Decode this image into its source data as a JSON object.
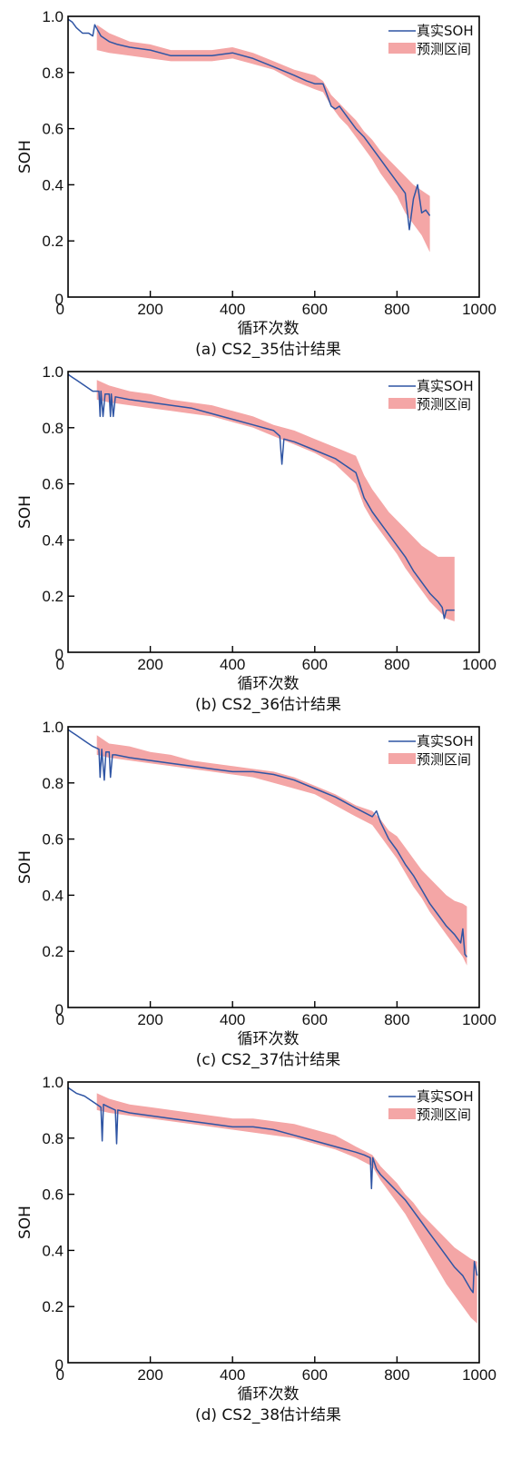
{
  "legend": {
    "actual": "真实SOH",
    "band": "预测区间"
  },
  "colors": {
    "actual": "#2f55a4",
    "band": "#f4a6a6",
    "axis": "#000000"
  },
  "chart_data": [
    {
      "type": "line",
      "caption": "(a) CS2_35估计结果",
      "xlabel": "循环次数",
      "ylabel": "SOH",
      "xlim": [
        0,
        1000
      ],
      "ylim": [
        0,
        1.0
      ],
      "xticks": [
        "0",
        "200",
        "400",
        "600",
        "800",
        "1000"
      ],
      "yticks": [
        "0",
        "0.2",
        "0.4",
        "0.6",
        "0.8",
        "1.0"
      ],
      "grid": false,
      "legend_position": "top-right",
      "series": [
        {
          "name": "真实SOH",
          "x": [
            0,
            10,
            20,
            35,
            50,
            60,
            65,
            80,
            100,
            120,
            150,
            200,
            250,
            300,
            350,
            400,
            450,
            500,
            550,
            580,
            600,
            620,
            630,
            640,
            650,
            660,
            680,
            700,
            720,
            740,
            760,
            780,
            800,
            820,
            830,
            840,
            850,
            860,
            870,
            880
          ],
          "y": [
            0.99,
            0.98,
            0.96,
            0.94,
            0.94,
            0.93,
            0.97,
            0.93,
            0.91,
            0.9,
            0.89,
            0.88,
            0.86,
            0.86,
            0.86,
            0.87,
            0.85,
            0.82,
            0.79,
            0.77,
            0.76,
            0.76,
            0.72,
            0.68,
            0.67,
            0.68,
            0.64,
            0.6,
            0.57,
            0.53,
            0.49,
            0.45,
            0.41,
            0.37,
            0.24,
            0.35,
            0.4,
            0.3,
            0.31,
            0.29
          ]
        },
        {
          "name": "预测区间",
          "x": [
            70,
            100,
            150,
            200,
            250,
            300,
            350,
            400,
            450,
            500,
            550,
            600,
            620,
            640,
            660,
            680,
            700,
            720,
            740,
            760,
            780,
            800,
            820,
            840,
            860,
            880
          ],
          "lower": [
            0.88,
            0.87,
            0.86,
            0.85,
            0.84,
            0.84,
            0.84,
            0.85,
            0.83,
            0.81,
            0.77,
            0.74,
            0.73,
            0.68,
            0.64,
            0.61,
            0.57,
            0.53,
            0.49,
            0.44,
            0.4,
            0.36,
            0.3,
            0.26,
            0.22,
            0.16
          ],
          "upper": [
            0.97,
            0.94,
            0.91,
            0.9,
            0.88,
            0.88,
            0.88,
            0.89,
            0.87,
            0.84,
            0.81,
            0.79,
            0.77,
            0.72,
            0.69,
            0.66,
            0.63,
            0.59,
            0.56,
            0.52,
            0.49,
            0.46,
            0.43,
            0.4,
            0.38,
            0.36
          ]
        }
      ]
    },
    {
      "type": "line",
      "caption": "(b) CS2_36估计结果",
      "xlabel": "循环次数",
      "ylabel": "SOH",
      "xlim": [
        0,
        1000
      ],
      "ylim": [
        0,
        1.0
      ],
      "xticks": [
        "0",
        "200",
        "400",
        "600",
        "800",
        "1000"
      ],
      "yticks": [
        "0",
        "0.2",
        "0.4",
        "0.6",
        "0.8",
        "1.0"
      ],
      "grid": false,
      "legend_position": "top-right",
      "series": [
        {
          "name": "真实SOH",
          "x": [
            0,
            10,
            20,
            40,
            60,
            75,
            78,
            80,
            85,
            90,
            100,
            103,
            105,
            110,
            115,
            150,
            200,
            250,
            300,
            350,
            400,
            450,
            500,
            515,
            520,
            525,
            550,
            600,
            650,
            700,
            720,
            740,
            760,
            780,
            800,
            820,
            840,
            860,
            880,
            900,
            910,
            915,
            920,
            930,
            940
          ],
          "y": [
            0.99,
            0.98,
            0.97,
            0.95,
            0.93,
            0.93,
            0.84,
            0.93,
            0.84,
            0.92,
            0.92,
            0.84,
            0.92,
            0.84,
            0.91,
            0.9,
            0.89,
            0.88,
            0.87,
            0.85,
            0.83,
            0.81,
            0.79,
            0.77,
            0.67,
            0.76,
            0.75,
            0.72,
            0.69,
            0.64,
            0.55,
            0.5,
            0.46,
            0.42,
            0.38,
            0.34,
            0.29,
            0.25,
            0.21,
            0.18,
            0.16,
            0.12,
            0.15,
            0.15,
            0.15
          ]
        },
        {
          "name": "预测区间",
          "x": [
            70,
            100,
            150,
            200,
            250,
            300,
            350,
            400,
            450,
            500,
            550,
            600,
            650,
            700,
            720,
            740,
            760,
            780,
            800,
            820,
            840,
            860,
            880,
            900,
            920,
            940
          ],
          "lower": [
            0.9,
            0.89,
            0.88,
            0.87,
            0.86,
            0.85,
            0.84,
            0.82,
            0.8,
            0.77,
            0.74,
            0.71,
            0.67,
            0.6,
            0.52,
            0.47,
            0.43,
            0.39,
            0.35,
            0.3,
            0.26,
            0.22,
            0.18,
            0.15,
            0.12,
            0.11
          ],
          "upper": [
            0.97,
            0.95,
            0.93,
            0.92,
            0.9,
            0.89,
            0.88,
            0.86,
            0.84,
            0.81,
            0.79,
            0.76,
            0.73,
            0.7,
            0.63,
            0.58,
            0.54,
            0.5,
            0.47,
            0.44,
            0.41,
            0.38,
            0.36,
            0.34,
            0.34,
            0.34
          ]
        }
      ]
    },
    {
      "type": "line",
      "caption": "(c) CS2_37估计结果",
      "xlabel": "循环次数",
      "ylabel": "SOH",
      "xlim": [
        0,
        1000
      ],
      "ylim": [
        0,
        1.0
      ],
      "xticks": [
        "0",
        "200",
        "400",
        "600",
        "800",
        "1000"
      ],
      "yticks": [
        "0",
        "0.2",
        "0.4",
        "0.6",
        "0.8",
        "1.0"
      ],
      "grid": false,
      "legend_position": "top-right",
      "series": [
        {
          "name": "真实SOH",
          "x": [
            0,
            10,
            20,
            40,
            60,
            75,
            78,
            82,
            88,
            92,
            100,
            103,
            108,
            115,
            150,
            200,
            250,
            300,
            350,
            400,
            450,
            500,
            550,
            600,
            650,
            700,
            740,
            750,
            760,
            770,
            780,
            800,
            820,
            840,
            860,
            880,
            900,
            920,
            940,
            955,
            960,
            965,
            970
          ],
          "y": [
            0.99,
            0.98,
            0.97,
            0.95,
            0.93,
            0.92,
            0.82,
            0.92,
            0.81,
            0.91,
            0.91,
            0.82,
            0.9,
            0.9,
            0.89,
            0.88,
            0.87,
            0.86,
            0.85,
            0.84,
            0.84,
            0.83,
            0.81,
            0.78,
            0.75,
            0.71,
            0.68,
            0.7,
            0.66,
            0.63,
            0.6,
            0.56,
            0.51,
            0.47,
            0.42,
            0.37,
            0.33,
            0.29,
            0.26,
            0.23,
            0.28,
            0.19,
            0.18
          ]
        },
        {
          "name": "预测区间",
          "x": [
            70,
            100,
            150,
            200,
            250,
            300,
            350,
            400,
            450,
            500,
            550,
            600,
            650,
            700,
            740,
            760,
            780,
            800,
            820,
            840,
            860,
            880,
            900,
            920,
            940,
            960,
            970
          ],
          "lower": [
            0.9,
            0.89,
            0.88,
            0.87,
            0.86,
            0.85,
            0.84,
            0.83,
            0.82,
            0.8,
            0.78,
            0.76,
            0.72,
            0.68,
            0.65,
            0.61,
            0.57,
            0.53,
            0.48,
            0.43,
            0.39,
            0.34,
            0.3,
            0.26,
            0.22,
            0.18,
            0.15
          ],
          "upper": [
            0.97,
            0.94,
            0.93,
            0.91,
            0.9,
            0.88,
            0.87,
            0.86,
            0.85,
            0.84,
            0.82,
            0.79,
            0.76,
            0.72,
            0.7,
            0.67,
            0.63,
            0.61,
            0.57,
            0.53,
            0.49,
            0.46,
            0.43,
            0.4,
            0.38,
            0.37,
            0.36
          ]
        }
      ]
    },
    {
      "type": "line",
      "caption": "(d) CS2_38估计结果",
      "xlabel": "循环次数",
      "ylabel": "SOH",
      "xlim": [
        0,
        1000
      ],
      "ylim": [
        0,
        1.0
      ],
      "xticks": [
        "0",
        "200",
        "400",
        "600",
        "800",
        "1000"
      ],
      "yticks": [
        "0",
        "0.2",
        "0.4",
        "0.6",
        "0.8",
        "1.0"
      ],
      "grid": false,
      "legend_position": "top-right",
      "series": [
        {
          "name": "真实SOH",
          "x": [
            0,
            10,
            20,
            40,
            60,
            80,
            83,
            86,
            100,
            115,
            118,
            121,
            150,
            200,
            250,
            300,
            350,
            400,
            450,
            500,
            550,
            600,
            650,
            700,
            720,
            735,
            738,
            741,
            750,
            760,
            780,
            800,
            820,
            840,
            860,
            880,
            900,
            920,
            940,
            960,
            980,
            985,
            988,
            995
          ],
          "y": [
            0.98,
            0.97,
            0.96,
            0.95,
            0.93,
            0.91,
            0.79,
            0.92,
            0.91,
            0.9,
            0.78,
            0.9,
            0.89,
            0.88,
            0.87,
            0.86,
            0.85,
            0.84,
            0.84,
            0.83,
            0.81,
            0.79,
            0.77,
            0.75,
            0.74,
            0.73,
            0.62,
            0.73,
            0.69,
            0.67,
            0.64,
            0.61,
            0.58,
            0.54,
            0.5,
            0.46,
            0.42,
            0.38,
            0.34,
            0.31,
            0.26,
            0.25,
            0.36,
            0.31
          ]
        },
        {
          "name": "预测区间",
          "x": [
            70,
            100,
            150,
            200,
            250,
            300,
            350,
            400,
            450,
            500,
            550,
            600,
            650,
            700,
            740,
            760,
            780,
            800,
            820,
            840,
            860,
            880,
            900,
            920,
            940,
            960,
            980,
            995
          ],
          "lower": [
            0.9,
            0.89,
            0.88,
            0.87,
            0.86,
            0.85,
            0.84,
            0.83,
            0.82,
            0.81,
            0.8,
            0.78,
            0.76,
            0.73,
            0.7,
            0.65,
            0.61,
            0.57,
            0.53,
            0.48,
            0.43,
            0.38,
            0.33,
            0.28,
            0.24,
            0.2,
            0.16,
            0.14
          ],
          "upper": [
            0.96,
            0.94,
            0.92,
            0.91,
            0.9,
            0.89,
            0.88,
            0.87,
            0.87,
            0.86,
            0.85,
            0.83,
            0.81,
            0.77,
            0.74,
            0.7,
            0.67,
            0.64,
            0.6,
            0.57,
            0.53,
            0.5,
            0.47,
            0.44,
            0.41,
            0.39,
            0.37,
            0.36
          ]
        }
      ]
    }
  ]
}
